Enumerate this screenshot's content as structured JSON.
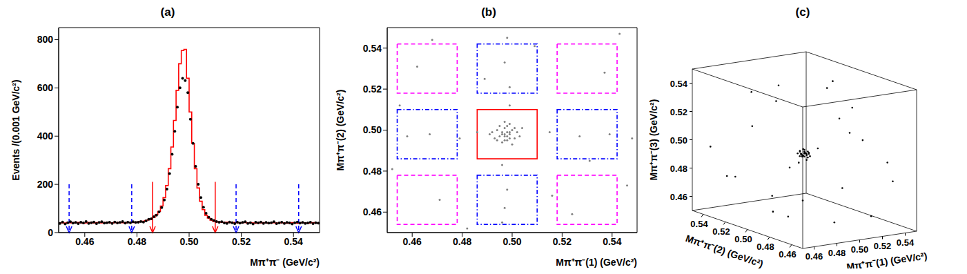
{
  "chart_data": [
    {
      "type": "histogram",
      "title": "(a)",
      "x_label": "Mπ⁺π⁻ (GeV/c²)",
      "y_label": "Events /(0.001 GeV/c²)",
      "xlim": [
        0.45,
        0.55
      ],
      "ylim": [
        0,
        850
      ],
      "xticks": [
        0.46,
        0.48,
        {
          "value": 0.5,
          "label": "0.50"
        },
        0.52,
        0.54
      ],
      "yticks": [
        0,
        200,
        400,
        600,
        800
      ],
      "bins": [
        0.45,
        0.451,
        0.452,
        0.453,
        0.454,
        0.455,
        0.456,
        0.457,
        0.458,
        0.459,
        0.46,
        0.461,
        0.462,
        0.463,
        0.464,
        0.465,
        0.466,
        0.467,
        0.468,
        0.469,
        0.47,
        0.471,
        0.472,
        0.473,
        0.474,
        0.475,
        0.476,
        0.477,
        0.478,
        0.479,
        0.48,
        0.481,
        0.482,
        0.483,
        0.484,
        0.485,
        0.486,
        0.487,
        0.488,
        0.489,
        0.49,
        0.491,
        0.492,
        0.493,
        0.494,
        0.495,
        0.496,
        0.497,
        0.498,
        0.499,
        0.5,
        0.501,
        0.502,
        0.503,
        0.504,
        0.505,
        0.506,
        0.507,
        0.508,
        0.509,
        0.51,
        0.511,
        0.512,
        0.513,
        0.514,
        0.515,
        0.516,
        0.517,
        0.518,
        0.519,
        0.52,
        0.521,
        0.522,
        0.523,
        0.524,
        0.525,
        0.526,
        0.527,
        0.528,
        0.529,
        0.53,
        0.531,
        0.532,
        0.533,
        0.534,
        0.535,
        0.536,
        0.537,
        0.538,
        0.539,
        0.54,
        0.541,
        0.542,
        0.543,
        0.544,
        0.545,
        0.546,
        0.547,
        0.548,
        0.549,
        0.55
      ],
      "series": [
        {
          "type": "step",
          "color": "#ff0000",
          "line_style": "solid",
          "values": [
            40,
            41,
            39,
            42,
            40,
            41,
            40,
            42,
            41,
            39,
            40,
            42,
            41,
            40,
            41,
            42,
            40,
            41,
            42,
            41,
            40,
            42,
            41,
            42,
            41,
            40,
            42,
            43,
            42,
            43,
            44,
            45,
            47,
            50,
            53,
            58,
            64,
            74,
            88,
            110,
            145,
            195,
            265,
            355,
            465,
            590,
            700,
            755,
            760,
            640,
            500,
            370,
            265,
            185,
            130,
            95,
            72,
            60,
            52,
            47,
            45,
            44,
            43,
            42,
            43,
            42,
            41,
            42,
            41,
            40,
            41,
            42,
            40,
            41,
            40,
            39,
            41,
            40,
            41,
            40,
            39,
            40,
            41,
            39,
            40,
            41,
            40,
            39,
            40,
            41,
            40,
            39,
            40,
            41,
            40,
            39,
            40,
            41,
            40,
            39
          ]
        },
        {
          "type": "scatter",
          "color": "#000000",
          "marker": "circle",
          "values": [
            38,
            44,
            36,
            41,
            45,
            39,
            42,
            37,
            43,
            40,
            46,
            38,
            41,
            44,
            37,
            42,
            45,
            39,
            41,
            43,
            38,
            44,
            40,
            42,
            46,
            39,
            43,
            41,
            45,
            42,
            43,
            46,
            44,
            49,
            55,
            57,
            66,
            72,
            86,
            104,
            135,
            180,
            245,
            325,
            420,
            520,
            600,
            640,
            630,
            580,
            470,
            370,
            275,
            200,
            145,
            105,
            80,
            64,
            55,
            50,
            46,
            43,
            45,
            40,
            38,
            44,
            41,
            37,
            43,
            39,
            42,
            45,
            38,
            41,
            36,
            43,
            40,
            44,
            38,
            42,
            39,
            41,
            45,
            37,
            40,
            43,
            38,
            42,
            40,
            36,
            41,
            44,
            39,
            42,
            38,
            40,
            43,
            37,
            41,
            39
          ]
        }
      ],
      "annotations": [
        {
          "type": "arrow",
          "x": 0.454,
          "from": 200,
          "to": 0,
          "color": "#0000ff",
          "line_style": "dashed"
        },
        {
          "type": "arrow",
          "x": 0.478,
          "from": 200,
          "to": 0,
          "color": "#0000ff",
          "line_style": "dashed"
        },
        {
          "type": "arrow",
          "x": 0.486,
          "from": 210,
          "to": 0,
          "color": "#ff0000",
          "line_style": "solid"
        },
        {
          "type": "arrow",
          "x": 0.51,
          "from": 210,
          "to": 0,
          "color": "#ff0000",
          "line_style": "solid"
        },
        {
          "type": "arrow",
          "x": 0.518,
          "from": 200,
          "to": 0,
          "color": "#0000ff",
          "line_style": "dashed"
        },
        {
          "type": "arrow",
          "x": 0.542,
          "from": 200,
          "to": 0,
          "color": "#0000ff",
          "line_style": "dashed"
        }
      ]
    },
    {
      "type": "scatter",
      "title": "(b)",
      "x_label": "Mπ⁺π⁻(1) (GeV/c²)",
      "y_label": "Mπ⁺π⁻(2) (GeV/c²)",
      "xlim": [
        0.45,
        0.55
      ],
      "ylim": [
        0.45,
        0.55
      ],
      "xticks": [
        0.46,
        0.48,
        {
          "value": 0.5,
          "label": "0.50"
        },
        0.52,
        0.54
      ],
      "yticks": [
        0.46,
        0.48,
        {
          "value": 0.5,
          "label": "0.50"
        },
        0.52,
        0.54
      ],
      "color": "#808080",
      "marker": "circle",
      "x": [
        0.497,
        0.499,
        0.496,
        0.498,
        0.5,
        0.495,
        0.497,
        0.499,
        0.494,
        0.501,
        0.498,
        0.496,
        0.502,
        0.493,
        0.497,
        0.5,
        0.499,
        0.495,
        0.503,
        0.492,
        0.498,
        0.497,
        0.496,
        0.499,
        0.498,
        0.501,
        0.494,
        0.504,
        0.491,
        0.497,
        0.497,
        0.498,
        0.496,
        0.499,
        0.497,
        0.498,
        0.496,
        0.499,
        0.458,
        0.467,
        0.479,
        0.515,
        0.527,
        0.539,
        0.548,
        0.486,
        0.462,
        0.471,
        0.524,
        0.537,
        0.455,
        0.509,
        0.482,
        0.546,
        0.468,
        0.531,
        0.489,
        0.516,
        0.452,
        0.543
      ],
      "y": [
        0.498,
        0.496,
        0.499,
        0.497,
        0.5,
        0.497,
        0.495,
        0.499,
        0.5,
        0.496,
        0.502,
        0.494,
        0.499,
        0.496,
        0.501,
        0.493,
        0.503,
        0.502,
        0.497,
        0.499,
        0.499,
        0.497,
        0.498,
        0.498,
        0.495,
        0.501,
        0.495,
        0.501,
        0.498,
        0.504,
        0.462,
        0.471,
        0.483,
        0.521,
        0.533,
        0.545,
        0.455,
        0.512,
        0.497,
        0.498,
        0.496,
        0.499,
        0.497,
        0.498,
        0.496,
        0.499,
        0.531,
        0.466,
        0.459,
        0.528,
        0.512,
        0.541,
        0.452,
        0.473,
        0.544,
        0.485,
        0.525,
        0.468,
        0.481,
        0.547
      ],
      "regions": [
        {
          "x": [
            0.454,
            0.478
          ],
          "y": [
            0.518,
            0.542
          ],
          "color": "#ff00ff",
          "line_style": "dashed"
        },
        {
          "x": [
            0.486,
            0.51
          ],
          "y": [
            0.518,
            0.542
          ],
          "color": "#0000ff",
          "line_style": "dashdot"
        },
        {
          "x": [
            0.518,
            0.542
          ],
          "y": [
            0.518,
            0.542
          ],
          "color": "#ff00ff",
          "line_style": "dashed"
        },
        {
          "x": [
            0.454,
            0.478
          ],
          "y": [
            0.486,
            0.51
          ],
          "color": "#0000ff",
          "line_style": "dashdot"
        },
        {
          "x": [
            0.486,
            0.51
          ],
          "y": [
            0.486,
            0.51
          ],
          "color": "#ff0000",
          "line_style": "solid"
        },
        {
          "x": [
            0.518,
            0.542
          ],
          "y": [
            0.486,
            0.51
          ],
          "color": "#0000ff",
          "line_style": "dashdot"
        },
        {
          "x": [
            0.454,
            0.478
          ],
          "y": [
            0.454,
            0.478
          ],
          "color": "#ff00ff",
          "line_style": "dashed"
        },
        {
          "x": [
            0.486,
            0.51
          ],
          "y": [
            0.454,
            0.478
          ],
          "color": "#0000ff",
          "line_style": "dashdot"
        },
        {
          "x": [
            0.518,
            0.542
          ],
          "y": [
            0.454,
            0.478
          ],
          "color": "#ff00ff",
          "line_style": "dashed"
        }
      ]
    },
    {
      "type": "scatter3d",
      "title": "(c)",
      "x_label": "Mπ⁺π⁻(1) (GeV/c²)",
      "y_label": "Mπ⁺π⁻(2) (GeV/c²)",
      "z_label": "Mπ⁺π⁻(3) (GeV/c²)",
      "xlim": [
        0.45,
        0.55
      ],
      "ylim": [
        0.45,
        0.55
      ],
      "zlim": [
        0.45,
        0.55
      ],
      "xticks": [
        0.46,
        0.48,
        {
          "value": 0.5,
          "label": "0.50"
        },
        0.52,
        0.54
      ],
      "yticks": [
        0.46,
        0.48,
        {
          "value": 0.5,
          "label": "0.50"
        },
        0.52,
        0.54
      ],
      "zticks": [
        0.46,
        0.48,
        {
          "value": 0.5,
          "label": "0.50"
        },
        0.52,
        0.54
      ],
      "color": "#000000",
      "marker": "circle",
      "points": [
        [
          0.497,
          0.498,
          0.497
        ],
        [
          0.498,
          0.497,
          0.499
        ],
        [
          0.496,
          0.499,
          0.498
        ],
        [
          0.499,
          0.496,
          0.496
        ],
        [
          0.497,
          0.497,
          0.5
        ],
        [
          0.5,
          0.498,
          0.497
        ],
        [
          0.495,
          0.497,
          0.498
        ],
        [
          0.498,
          0.5,
          0.496
        ],
        [
          0.497,
          0.495,
          0.499
        ],
        [
          0.499,
          0.499,
          0.498
        ],
        [
          0.496,
          0.496,
          0.497
        ],
        [
          0.498,
          0.498,
          0.501
        ],
        [
          0.501,
          0.497,
          0.498
        ],
        [
          0.494,
          0.498,
          0.497
        ],
        [
          0.497,
          0.501,
          0.499
        ],
        [
          0.499,
          0.497,
          0.494
        ],
        [
          0.498,
          0.496,
          0.498
        ],
        [
          0.496,
          0.5,
          0.5
        ],
        [
          0.5,
          0.495,
          0.497
        ],
        [
          0.497,
          0.499,
          0.496
        ],
        [
          0.502,
          0.499,
          0.499
        ],
        [
          0.495,
          0.501,
          0.498
        ],
        [
          0.498,
          0.494,
          0.5
        ],
        [
          0.499,
          0.502,
          0.497
        ],
        [
          0.496,
          0.497,
          0.502
        ],
        [
          0.462,
          0.531,
          0.478
        ],
        [
          0.523,
          0.471,
          0.512
        ],
        [
          0.487,
          0.455,
          0.536
        ],
        [
          0.541,
          0.508,
          0.466
        ],
        [
          0.475,
          0.489,
          0.459
        ],
        [
          0.512,
          0.538,
          0.523
        ],
        [
          0.455,
          0.467,
          0.502
        ],
        [
          0.531,
          0.452,
          0.487
        ],
        [
          0.468,
          0.515,
          0.541
        ],
        [
          0.503,
          0.476,
          0.455
        ],
        [
          0.546,
          0.527,
          0.531
        ],
        [
          0.481,
          0.543,
          0.472
        ],
        [
          0.519,
          0.494,
          0.548
        ],
        [
          0.458,
          0.504,
          0.521
        ],
        [
          0.536,
          0.462,
          0.497
        ],
        [
          0.492,
          0.521,
          0.463
        ],
        [
          0.471,
          0.458,
          0.516
        ],
        [
          0.527,
          0.533,
          0.479
        ],
        [
          0.509,
          0.466,
          0.538
        ],
        [
          0.464,
          0.548,
          0.494
        ],
        [
          0.544,
          0.485,
          0.452
        ],
        [
          0.486,
          0.509,
          0.545
        ],
        [
          0.452,
          0.479,
          0.468
        ],
        [
          0.515,
          0.517,
          0.458
        ],
        [
          0.498,
          0.457,
          0.524
        ]
      ]
    }
  ]
}
